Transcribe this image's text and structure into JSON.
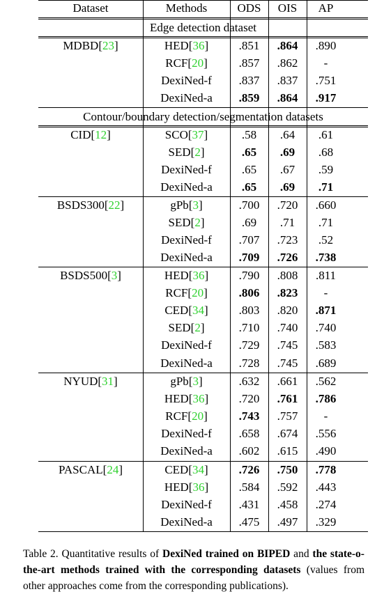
{
  "header": {
    "dataset": "Dataset",
    "methods": "Methods",
    "ods": "ODS",
    "ois": "OIS",
    "ap": "AP"
  },
  "sections": [
    {
      "title": "Edge detection dataset",
      "groups": [
        {
          "name": "MDBD",
          "ref": "23",
          "rows": [
            {
              "method": "HED",
              "ref": "36",
              "ods": ".851",
              "ois": ".864",
              "ap": ".890",
              "bold": [
                "ois"
              ]
            },
            {
              "method": "RCF",
              "ref": "20",
              "ods": ".857",
              "ois": ".862",
              "ap": "-",
              "bold": []
            },
            {
              "method": "DexiNed-f",
              "ref": "",
              "ods": ".837",
              "ois": ".837",
              "ap": ".751",
              "bold": []
            },
            {
              "method": "DexiNed-a",
              "ref": "",
              "ods": ".859",
              "ois": ".864",
              "ap": ".917",
              "bold": [
                "ods",
                "ois",
                "ap"
              ]
            }
          ]
        }
      ]
    },
    {
      "title": "Contour/boundary detection/segmentation datasets",
      "groups": [
        {
          "name": "CID",
          "ref": "12",
          "rows": [
            {
              "method": "SCO",
              "ref": "37",
              "ods": ".58",
              "ois": ".64",
              "ap": ".61",
              "bold": []
            },
            {
              "method": "SED",
              "ref": "2",
              "ods": ".65",
              "ois": ".69",
              "ap": ".68",
              "bold": [
                "ods",
                "ois"
              ]
            },
            {
              "method": "DexiNed-f",
              "ref": "",
              "ods": ".65",
              "ois": ".67",
              "ap": ".59",
              "bold": []
            },
            {
              "method": "DexiNed-a",
              "ref": "",
              "ods": ".65",
              "ois": ".69",
              "ap": ".71",
              "bold": [
                "ods",
                "ois",
                "ap"
              ]
            }
          ]
        },
        {
          "name": "BSDS300",
          "ref": "22",
          "rows": [
            {
              "method": "gPb",
              "ref": "3",
              "ods": ".700",
              "ois": ".720",
              "ap": ".660",
              "bold": []
            },
            {
              "method": "SED",
              "ref": "2",
              "ods": ".69",
              "ois": ".71",
              "ap": ".71",
              "bold": []
            },
            {
              "method": "DexiNed-f",
              "ref": "",
              "ods": ".707",
              "ois": ".723",
              "ap": ".52",
              "bold": []
            },
            {
              "method": "DexiNed-a",
              "ref": "",
              "ods": ".709",
              "ois": ".726",
              "ap": ".738",
              "bold": [
                "ods",
                "ois",
                "ap"
              ]
            }
          ]
        },
        {
          "name": "BSDS500",
          "ref": "3",
          "rows": [
            {
              "method": "HED",
              "ref": "36",
              "ods": ".790",
              "ois": ".808",
              "ap": ".811",
              "bold": []
            },
            {
              "method": "RCF",
              "ref": "20",
              "ods": ".806",
              "ois": ".823",
              "ap": "-",
              "bold": [
                "ods",
                "ois"
              ]
            },
            {
              "method": "CED",
              "ref": "34",
              "ods": ".803",
              "ois": ".820",
              "ap": ".871",
              "bold": [
                "ap"
              ]
            },
            {
              "method": "SED",
              "ref": "2",
              "ods": ".710",
              "ois": ".740",
              "ap": ".740",
              "bold": []
            },
            {
              "method": "DexiNed-f",
              "ref": "",
              "ods": ".729",
              "ois": ".745",
              "ap": ".583",
              "bold": []
            },
            {
              "method": "DexiNed-a",
              "ref": "",
              "ods": ".728",
              "ois": ".745",
              "ap": ".689",
              "bold": []
            }
          ]
        },
        {
          "name": "NYUD",
          "ref": "31",
          "rows": [
            {
              "method": "gPb",
              "ref": "3",
              "ods": ".632",
              "ois": ".661",
              "ap": ".562",
              "bold": []
            },
            {
              "method": "HED",
              "ref": "36",
              "ods": ".720",
              "ois": ".761",
              "ap": ".786",
              "bold": [
                "ois",
                "ap"
              ]
            },
            {
              "method": "RCF",
              "ref": "20",
              "ods": ".743",
              "ois": ".757",
              "ap": "-",
              "bold": [
                "ods"
              ]
            },
            {
              "method": "DexiNed-f",
              "ref": "",
              "ods": ".658",
              "ois": ".674",
              "ap": ".556",
              "bold": []
            },
            {
              "method": "DexiNed-a",
              "ref": "",
              "ods": ".602",
              "ois": ".615",
              "ap": ".490",
              "bold": []
            }
          ]
        },
        {
          "name": "PASCAL",
          "ref": "24",
          "rows": [
            {
              "method": "CED",
              "ref": "34",
              "ods": ".726",
              "ois": ".750",
              "ap": ".778",
              "bold": [
                "ods",
                "ois",
                "ap"
              ]
            },
            {
              "method": "HED",
              "ref": "36",
              "ods": ".584",
              "ois": ".592",
              "ap": ".443",
              "bold": []
            },
            {
              "method": "DexiNed-f",
              "ref": "",
              "ods": ".431",
              "ois": ".458",
              "ap": ".274",
              "bold": []
            },
            {
              "method": "DexiNed-a",
              "ref": "",
              "ods": ".475",
              "ois": ".497",
              "ap": ".329",
              "bold": []
            }
          ]
        }
      ]
    }
  ],
  "caption": {
    "prefix": "Table 2. Quantitative results of ",
    "bold1": "DexiNed trained on BIPED",
    "mid": " and ",
    "bold2": "the state-o-the-art methods trained with the corresponding datasets",
    "suffix": " (values from other approaches come from the corresponding publications)."
  },
  "colors": {
    "ref": "#2fd12f"
  }
}
